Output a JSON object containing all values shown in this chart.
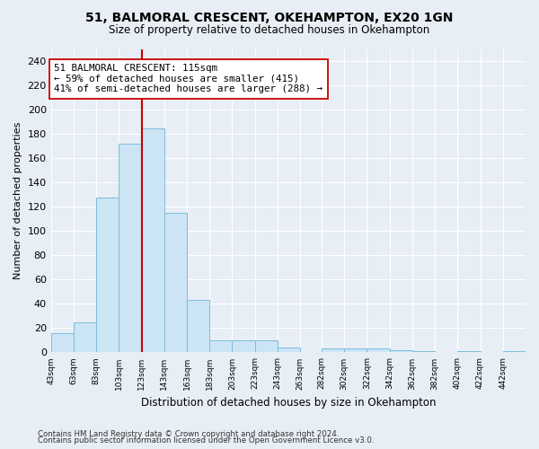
{
  "title1": "51, BALMORAL CRESCENT, OKEHAMPTON, EX20 1GN",
  "title2": "Size of property relative to detached houses in Okehampton",
  "xlabel": "Distribution of detached houses by size in Okehampton",
  "ylabel": "Number of detached properties",
  "bin_labels": [
    "43sqm",
    "63sqm",
    "83sqm",
    "103sqm",
    "123sqm",
    "143sqm",
    "163sqm",
    "183sqm",
    "203sqm",
    "223sqm",
    "243sqm",
    "263sqm",
    "282sqm",
    "302sqm",
    "322sqm",
    "342sqm",
    "362sqm",
    "382sqm",
    "402sqm",
    "422sqm",
    "442sqm"
  ],
  "bar_heights": [
    16,
    25,
    128,
    172,
    185,
    115,
    43,
    10,
    10,
    10,
    4,
    0,
    3,
    3,
    3,
    2,
    1,
    0,
    1,
    0,
    1
  ],
  "bar_color": "#cce5f5",
  "bar_edge_color": "#7bbcde",
  "bin_edges": [
    43,
    63,
    83,
    103,
    123,
    143,
    163,
    183,
    203,
    223,
    243,
    263,
    282,
    302,
    322,
    342,
    362,
    382,
    402,
    422,
    442,
    462
  ],
  "vline_x": 123,
  "vline_color": "#cc0000",
  "annotation_text": "51 BALMORAL CRESCENT: 115sqm\n← 59% of detached houses are smaller (415)\n41% of semi-detached houses are larger (288) →",
  "annotation_box_color": "#ffffff",
  "annotation_box_edge_color": "#cc0000",
  "ylim": [
    0,
    250
  ],
  "yticks": [
    0,
    20,
    40,
    60,
    80,
    100,
    120,
    140,
    160,
    180,
    200,
    220,
    240
  ],
  "footnote1": "Contains HM Land Registry data © Crown copyright and database right 2024.",
  "footnote2": "Contains public sector information licensed under the Open Government Licence v3.0.",
  "background_color": "#e8eef5",
  "grid_color": "#ffffff"
}
